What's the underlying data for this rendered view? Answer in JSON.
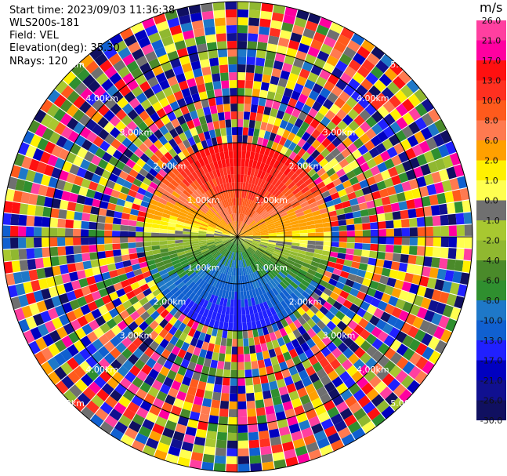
{
  "header": {
    "start_time": "Start time: 2023/09/03 11:36:38",
    "instrument": "WLS200s-181",
    "field": "Field: VEL",
    "elevation": "Elevation(deg): 35.30",
    "nrays": "NRays: 120"
  },
  "colorbar": {
    "unit": "m/s",
    "ticks": [
      "26.0",
      "21.0",
      "17.0",
      "13.0",
      "10.0",
      "8.0",
      "6.0",
      "2.0",
      "1.0",
      "0.0",
      "-1.0",
      "-2.0",
      "-4.0",
      "-6.0",
      "-8.0",
      "-10.0",
      "-13.0",
      "-17.0",
      "-21.0",
      "-26.0",
      "-30.0"
    ],
    "colors": [
      "#ff3fa0",
      "#ff00a0",
      "#ff1010",
      "#ff3020",
      "#ff5a1c",
      "#ff7a50",
      "#ffa000",
      "#fff000",
      "#ffff50",
      "#707070",
      "#a8c830",
      "#90b830",
      "#4a8a2a",
      "#2f8f2f",
      "#1e78c8",
      "#1060d0",
      "#2020ff",
      "#0000c0",
      "#101090",
      "#101060"
    ]
  },
  "chart_data": {
    "type": "heatmap",
    "projection": "polar (PPI scan)",
    "field": "VEL",
    "units": "m/s",
    "nrays": 120,
    "elevation_deg": 35.3,
    "range_rings_km": [
      "1.00km",
      "2.00km",
      "3.00km",
      "4.00km",
      "5.00km"
    ],
    "ring_label_quadrants": [
      "NE",
      "NW",
      "SE",
      "SW"
    ],
    "vmin": -30.0,
    "vmax": 26.0
  }
}
